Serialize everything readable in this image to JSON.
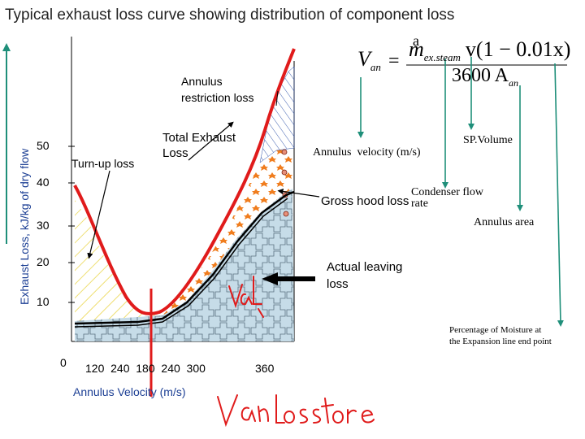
{
  "title": "Typical exhaust loss curve showing distribution of component loss",
  "y_axis_label": "Exhaust Loss, kJ/kg of dry flow",
  "y_ticks": [
    "50",
    "40",
    "30",
    "20",
    "10"
  ],
  "x_origin_label": "0",
  "x_ticks_text": "120  240  180  240  300",
  "x_tick_360": "360",
  "x_axis_label": "Annulus Velocity (m/s)",
  "labels": {
    "annulus_restriction": [
      "Annulus",
      "restriction loss"
    ],
    "turn_up": "Turn-up loss",
    "total_exhaust": [
      "Total Exhaust",
      "Loss"
    ],
    "gross_hood": "Gross hood loss",
    "actual_leaving": [
      "Actual leaving",
      "loss"
    ]
  },
  "formula": {
    "lhs": "V",
    "lhs_sub": "an",
    "equals": "=",
    "num_m": "m",
    "num_sub": "ex.steam",
    "num_rest": "v(1 − 0.01x)",
    "den": "3600 A",
    "den_sub": "an",
    "extra_glyph": "a"
  },
  "formula_legend": {
    "annulus_velocity": "Annulus  velocity (m/s)",
    "sp_volume": "SP.Volume",
    "condenser_flow": [
      "Condenser flow",
      "rate"
    ],
    "annulus_area": "Annulus area",
    "moisture": [
      "Percentage of Moisture at",
      "the Expansion line end point"
    ]
  },
  "colors": {
    "axis_label": "#1c3f94",
    "red_ink": "#e01b1b",
    "green_arrow": "#1f8f7a",
    "orange_dots": "#f07d1e",
    "hatch_yellow": "#e8d23a",
    "hatch_blue": "#2a4fa8",
    "ice_fill": "#c6dce8"
  },
  "icons": {
    "arrow": "black-arrow-icon",
    "handwriting": "red-handwriting-annotation"
  }
}
